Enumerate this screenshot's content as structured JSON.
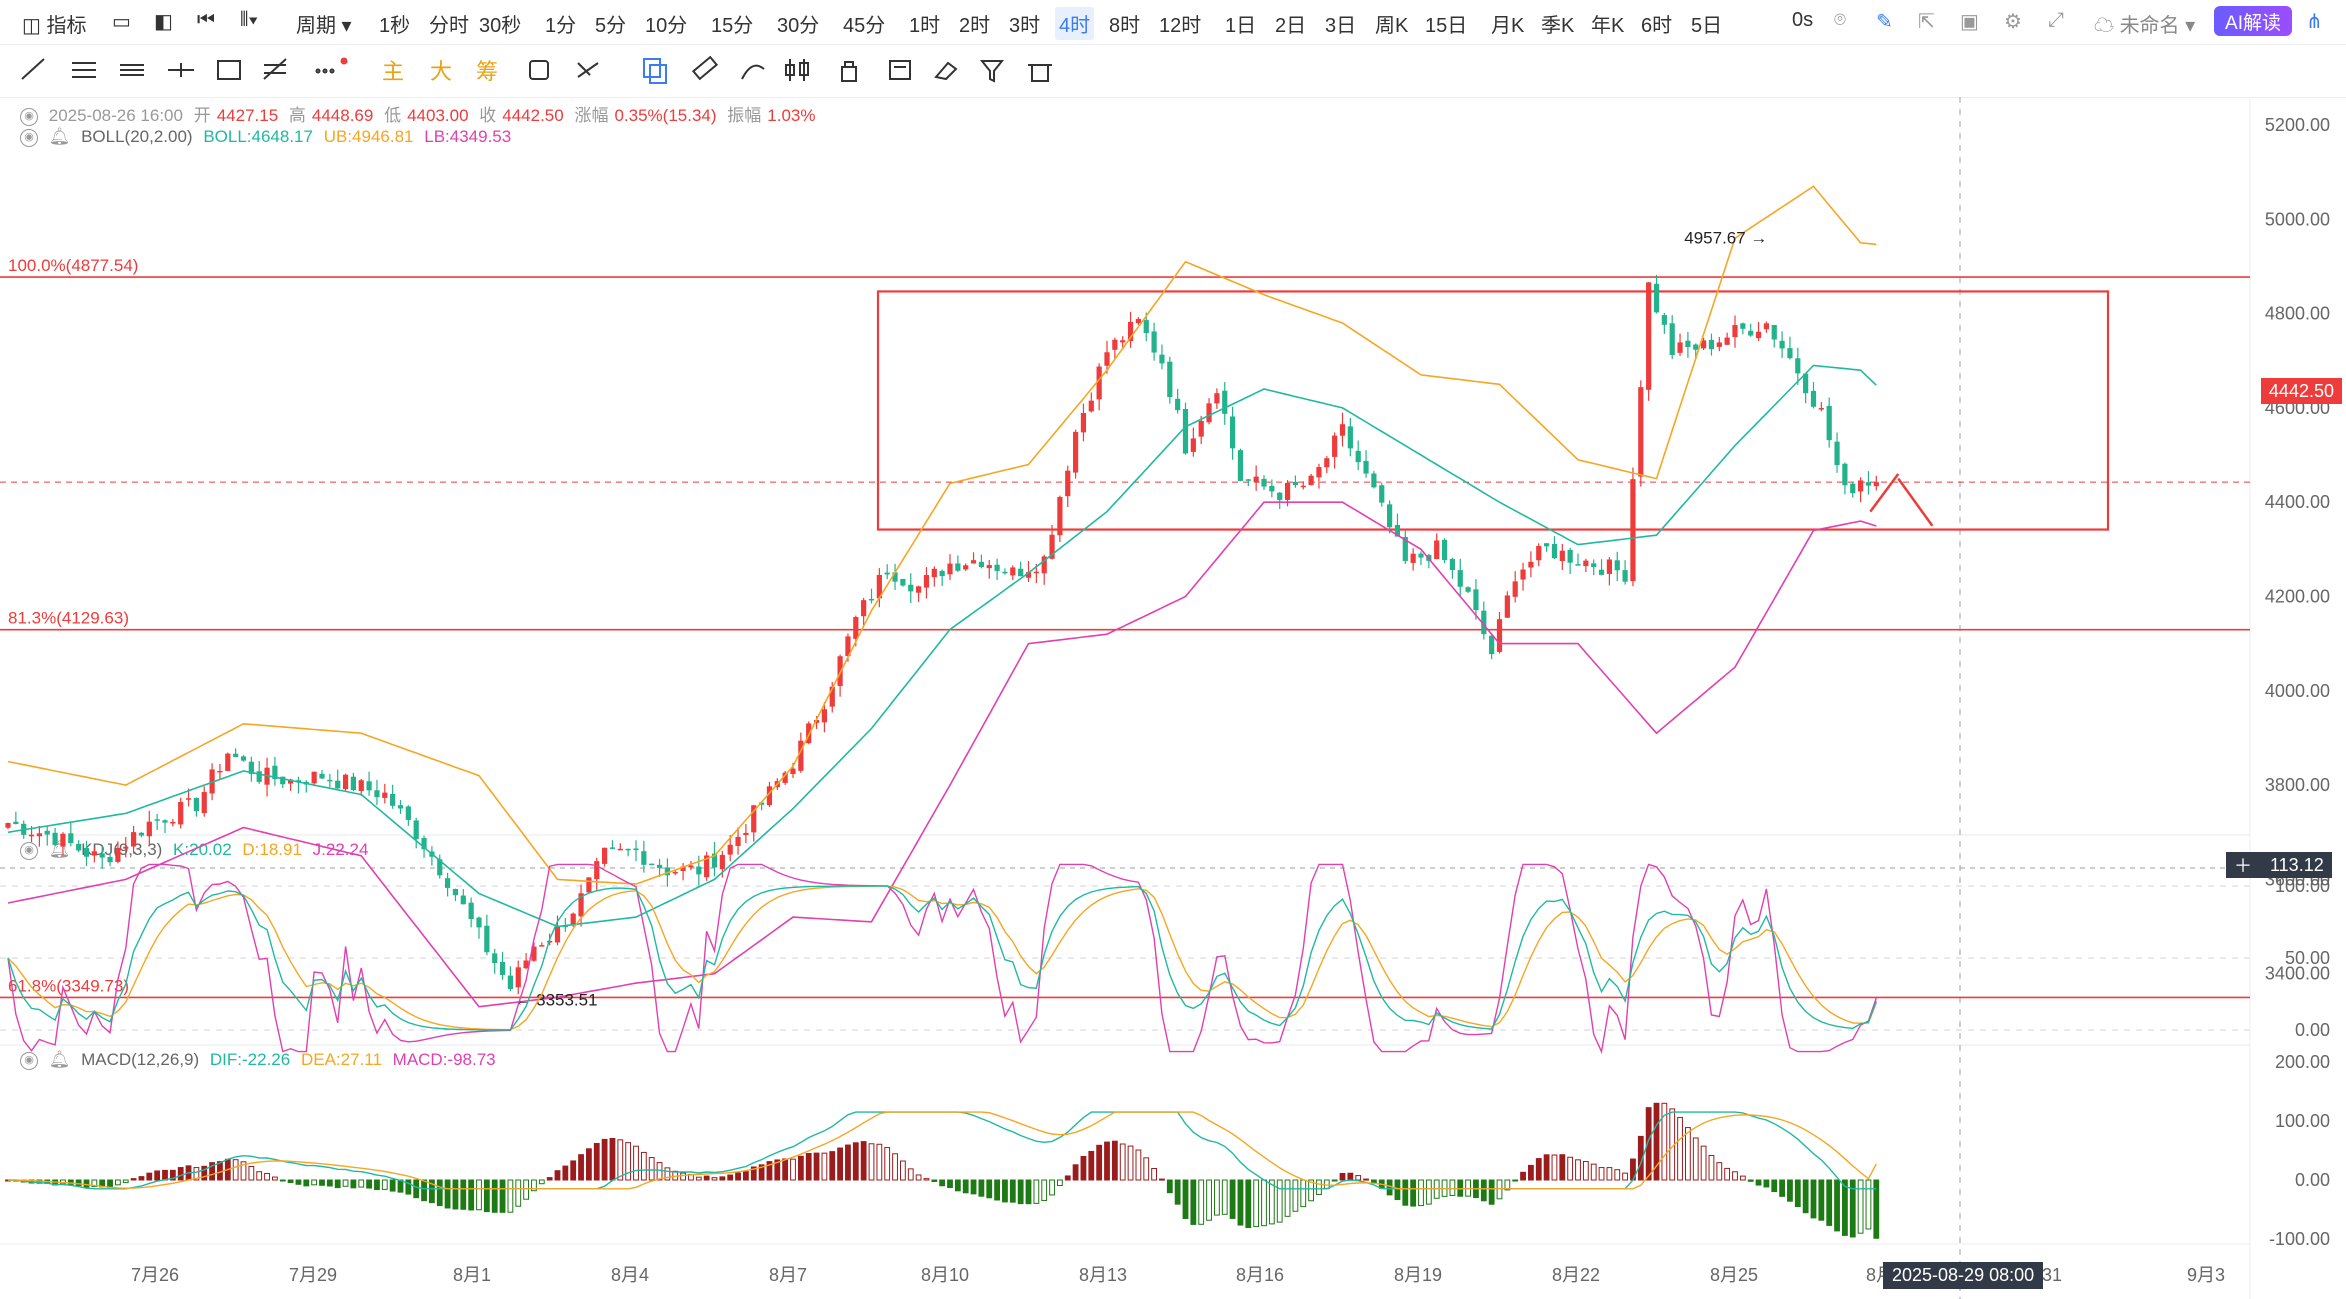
{
  "toolbar": {
    "indicator_label": "指标",
    "period_label": "周期",
    "timeframes": [
      "1秒",
      "分时",
      "30秒",
      "1分",
      "5分",
      "10分",
      "15分",
      "30分",
      "45分",
      "1时",
      "2时",
      "3时",
      "4时",
      "8时",
      "12时",
      "1日",
      "2日",
      "3日",
      "周K",
      "15日",
      "月K",
      "季K",
      "年K",
      "6时",
      "5日"
    ],
    "active_timeframe": "4时",
    "countdown": "0s",
    "layout_name": "未命名",
    "ai_button": "AI解读"
  },
  "drawbar": {
    "main_label": "主",
    "big_label": "大",
    "chip_label": "筹"
  },
  "legend": {
    "date": "2025-08-26 16:00",
    "open_label": "开",
    "open": "4427.15",
    "high_label": "高",
    "high": "4448.69",
    "low_label": "低",
    "low": "4403.00",
    "close_label": "收",
    "close": "4442.50",
    "change_label": "涨幅",
    "change": "0.35%(15.34)",
    "amplitude_label": "振幅",
    "amplitude": "1.03%",
    "boll_name": "BOLL(20,2.00)",
    "boll_mid": "BOLL:4648.17",
    "boll_ub": "UB:4946.81",
    "boll_lb": "LB:4349.53",
    "kdj_name": "KDJ(9,3,3)",
    "kdj_k": "K:20.02",
    "kdj_d": "D:18.91",
    "kdj_j": "J:22.24",
    "macd_name": "MACD(12,26,9)",
    "macd_dif": "DIF:-22.26",
    "macd_dea": "DEA:27.11",
    "macd_val": "MACD:-98.73"
  },
  "colors": {
    "up": "#ee3b3b",
    "down": "#22b38c",
    "boll_mid": "#20b9a0",
    "boll_ub": "#f5a623",
    "boll_lb": "#e040b0",
    "macd_up": "#9b1c1c",
    "macd_down": "#1d7a14"
  },
  "price_axis": [
    "5200.00",
    "5000.00",
    "4800.00",
    "4600.00",
    "4400.00",
    "4200.00",
    "4000.00",
    "3800.00",
    "3600.00",
    "3400.00"
  ],
  "kdj_axis": [
    "100.00",
    "50.00",
    "0.00"
  ],
  "macd_axis": [
    "200.00",
    "100.00",
    "0.00",
    "-100.00"
  ],
  "current_price": "4442.50",
  "crosshair_value": "113.12",
  "crosshair_time": "2025-08-29 08:00",
  "fib": [
    {
      "label": "100.0%(4877.54)",
      "value": 4877.54
    },
    {
      "label": "81.3%(4129.63)",
      "value": 4129.63
    },
    {
      "label": "61.8%(3349.73)",
      "value": 3349.73
    }
  ],
  "annotations": {
    "high_label": "4957.67 →",
    "low_label": "← 3353.51"
  },
  "chart_data": {
    "type": "candlestick",
    "x_labels": [
      "7月26",
      "7月29",
      "8月1",
      "8月4",
      "8月7",
      "8月10",
      "8月13",
      "8月16",
      "8月19",
      "8月22",
      "8月25",
      "8月",
      "8月31",
      "9月3"
    ],
    "ylim": [
      3300,
      5250
    ],
    "anchors": [
      [
        0,
        3720
      ],
      [
        6,
        3690
      ],
      [
        12,
        3640
      ],
      [
        18,
        3720
      ],
      [
        24,
        3760
      ],
      [
        28,
        3870
      ],
      [
        32,
        3820
      ],
      [
        36,
        3810
      ],
      [
        40,
        3820
      ],
      [
        44,
        3800
      ],
      [
        48,
        3780
      ],
      [
        52,
        3700
      ],
      [
        56,
        3600
      ],
      [
        60,
        3480
      ],
      [
        64,
        3370
      ],
      [
        67,
        3460
      ],
      [
        70,
        3490
      ],
      [
        73,
        3560
      ],
      [
        76,
        3650
      ],
      [
        80,
        3660
      ],
      [
        84,
        3620
      ],
      [
        88,
        3620
      ],
      [
        92,
        3670
      ],
      [
        96,
        3760
      ],
      [
        100,
        3850
      ],
      [
        104,
        3980
      ],
      [
        108,
        4150
      ],
      [
        112,
        4260
      ],
      [
        116,
        4220
      ],
      [
        120,
        4270
      ],
      [
        124,
        4280
      ],
      [
        128,
        4250
      ],
      [
        132,
        4280
      ],
      [
        136,
        4550
      ],
      [
        140,
        4720
      ],
      [
        144,
        4780
      ],
      [
        147,
        4700
      ],
      [
        150,
        4520
      ],
      [
        154,
        4650
      ],
      [
        157,
        4450
      ],
      [
        162,
        4420
      ],
      [
        166,
        4440
      ],
      [
        170,
        4550
      ],
      [
        174,
        4420
      ],
      [
        178,
        4270
      ],
      [
        182,
        4300
      ],
      [
        186,
        4200
      ],
      [
        189,
        4080
      ],
      [
        192,
        4250
      ],
      [
        196,
        4300
      ],
      [
        200,
        4280
      ],
      [
        204,
        4260
      ],
      [
        206,
        4250
      ],
      [
        209,
        4860
      ],
      [
        212,
        4720
      ],
      [
        216,
        4730
      ],
      [
        220,
        4760
      ],
      [
        224,
        4780
      ],
      [
        228,
        4680
      ],
      [
        231,
        4590
      ],
      [
        234,
        4420
      ],
      [
        236,
        4450
      ],
      [
        238,
        4442.5
      ]
    ],
    "bollinger": {
      "mid": [
        [
          0,
          3700
        ],
        [
          15,
          3740
        ],
        [
          30,
          3830
        ],
        [
          45,
          3780
        ],
        [
          60,
          3570
        ],
        [
          70,
          3500
        ],
        [
          80,
          3520
        ],
        [
          90,
          3600
        ],
        [
          100,
          3750
        ],
        [
          110,
          3920
        ],
        [
          120,
          4130
        ],
        [
          130,
          4250
        ],
        [
          140,
          4380
        ],
        [
          150,
          4560
        ],
        [
          160,
          4640
        ],
        [
          170,
          4600
        ],
        [
          180,
          4500
        ],
        [
          190,
          4400
        ],
        [
          200,
          4310
        ],
        [
          210,
          4330
        ],
        [
          220,
          4520
        ],
        [
          230,
          4690
        ],
        [
          236,
          4680
        ],
        [
          238,
          4648.17
        ]
      ],
      "upper": [
        [
          0,
          3850
        ],
        [
          15,
          3800
        ],
        [
          30,
          3930
        ],
        [
          45,
          3910
        ],
        [
          60,
          3820
        ],
        [
          70,
          3600
        ],
        [
          80,
          3590
        ],
        [
          90,
          3650
        ],
        [
          100,
          3840
        ],
        [
          110,
          4170
        ],
        [
          120,
          4440
        ],
        [
          130,
          4480
        ],
        [
          140,
          4680
        ],
        [
          150,
          4910
        ],
        [
          160,
          4840
        ],
        [
          170,
          4780
        ],
        [
          180,
          4670
        ],
        [
          190,
          4650
        ],
        [
          200,
          4490
        ],
        [
          210,
          4450
        ],
        [
          220,
          4960
        ],
        [
          230,
          5070
        ],
        [
          236,
          4950
        ],
        [
          238,
          4946.81
        ]
      ],
      "lower": [
        [
          0,
          3550
        ],
        [
          15,
          3600
        ],
        [
          30,
          3710
        ],
        [
          45,
          3650
        ],
        [
          60,
          3330
        ],
        [
          70,
          3350
        ],
        [
          80,
          3380
        ],
        [
          90,
          3400
        ],
        [
          100,
          3520
        ],
        [
          110,
          3510
        ],
        [
          120,
          3800
        ],
        [
          130,
          4100
        ],
        [
          140,
          4120
        ],
        [
          150,
          4200
        ],
        [
          160,
          4400
        ],
        [
          170,
          4400
        ],
        [
          180,
          4300
        ],
        [
          190,
          4100
        ],
        [
          200,
          4100
        ],
        [
          210,
          3910
        ],
        [
          220,
          4050
        ],
        [
          230,
          4340
        ],
        [
          236,
          4360
        ],
        [
          238,
          4349.53
        ]
      ]
    },
    "highest_marker": {
      "index": 225,
      "price": 4957.67
    },
    "lowest_marker": {
      "index": 64,
      "price": 3353.51
    },
    "range_box": {
      "from_index": 95,
      "to_index": 275,
      "top": 4847,
      "bottom": 4342
    },
    "kdj_ylim": [
      -20,
      120
    ],
    "macd_ylim": [
      -140,
      230
    ],
    "kdj_last": {
      "K": 20.02,
      "D": 18.91,
      "J": 22.24
    },
    "macd_last": {
      "DIF": -22.26,
      "DEA": 27.11,
      "MACD": -98.73
    }
  }
}
